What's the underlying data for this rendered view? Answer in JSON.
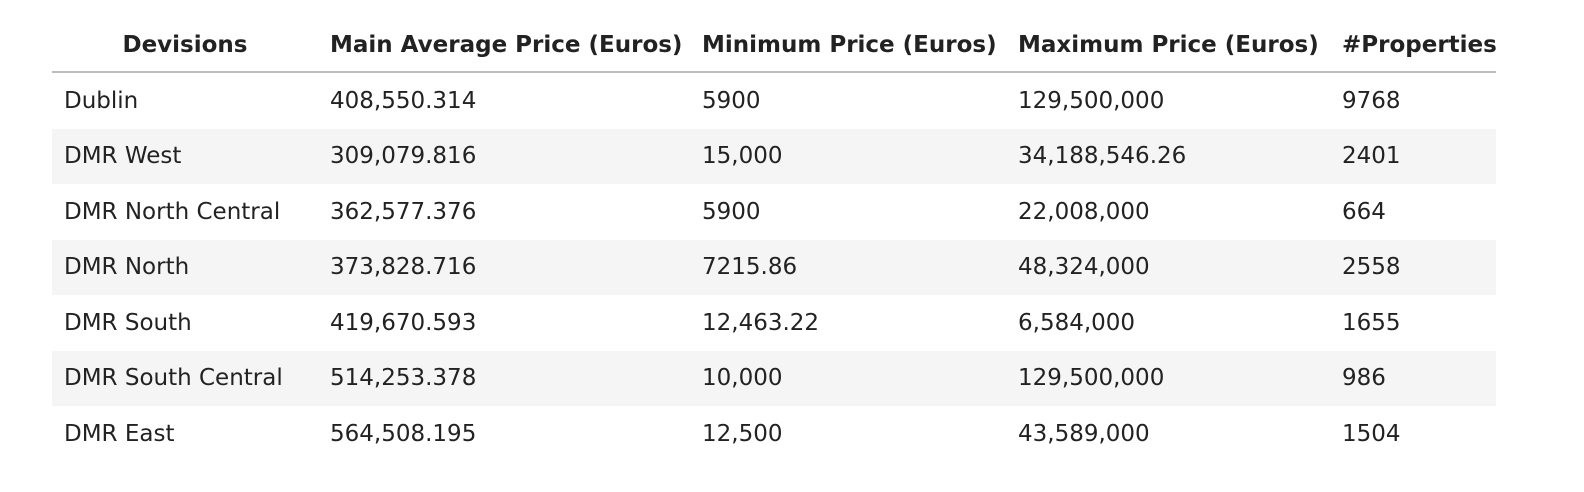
{
  "table": {
    "columns": [
      "Devisions",
      "Main Average Price (Euros)",
      "Minimum Price (Euros)",
      "Maximum Price (Euros)",
      "#Properties"
    ],
    "rows": [
      [
        "Dublin",
        "408,550.314",
        "5900",
        "129,500,000",
        "9768"
      ],
      [
        "DMR West",
        "309,079.816",
        "15,000",
        "34,188,546.26",
        "2401"
      ],
      [
        "DMR North Central",
        "362,577.376",
        "5900",
        "22,008,000",
        "664"
      ],
      [
        "DMR North",
        "373,828.716",
        "7215.86",
        "48,324,000",
        "2558"
      ],
      [
        "DMR South",
        "419,670.593",
        "12,463.22",
        "6,584,000",
        "1655"
      ],
      [
        "DMR South Central",
        "514,253.378",
        "10,000",
        "129,500,000",
        "986"
      ],
      [
        "DMR East",
        "564,508.195",
        "12,500",
        "43,589,000",
        "1504"
      ]
    ]
  },
  "colors": {
    "text": "#222222",
    "header_rule": "#bdbdbd",
    "stripe": "#f5f5f5",
    "background": "#ffffff"
  }
}
